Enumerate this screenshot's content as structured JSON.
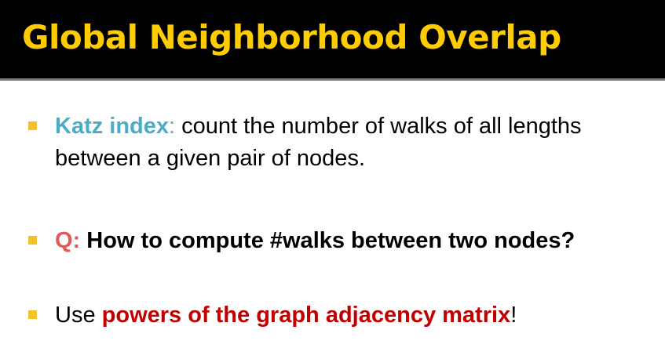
{
  "slide": {
    "title": "Global Neighborhood Overlap",
    "bullets": [
      {
        "term": "Katz index",
        "colon": ":",
        "text": " count the number of walks of all lengths between a given pair of nodes."
      },
      {
        "label": "Q:",
        "text": " How to compute #walks between two nodes?"
      },
      {
        "prefix": "Use ",
        "emphasis": "powers of the graph adjacency matrix",
        "suffix": "!"
      }
    ]
  },
  "colors": {
    "title": "#ffcc00",
    "title_background": "#000000",
    "bullet_marker": "#f2c12e",
    "term": "#4bacc6",
    "question_label": "#e35a5a",
    "emphasis": "#c00000"
  }
}
